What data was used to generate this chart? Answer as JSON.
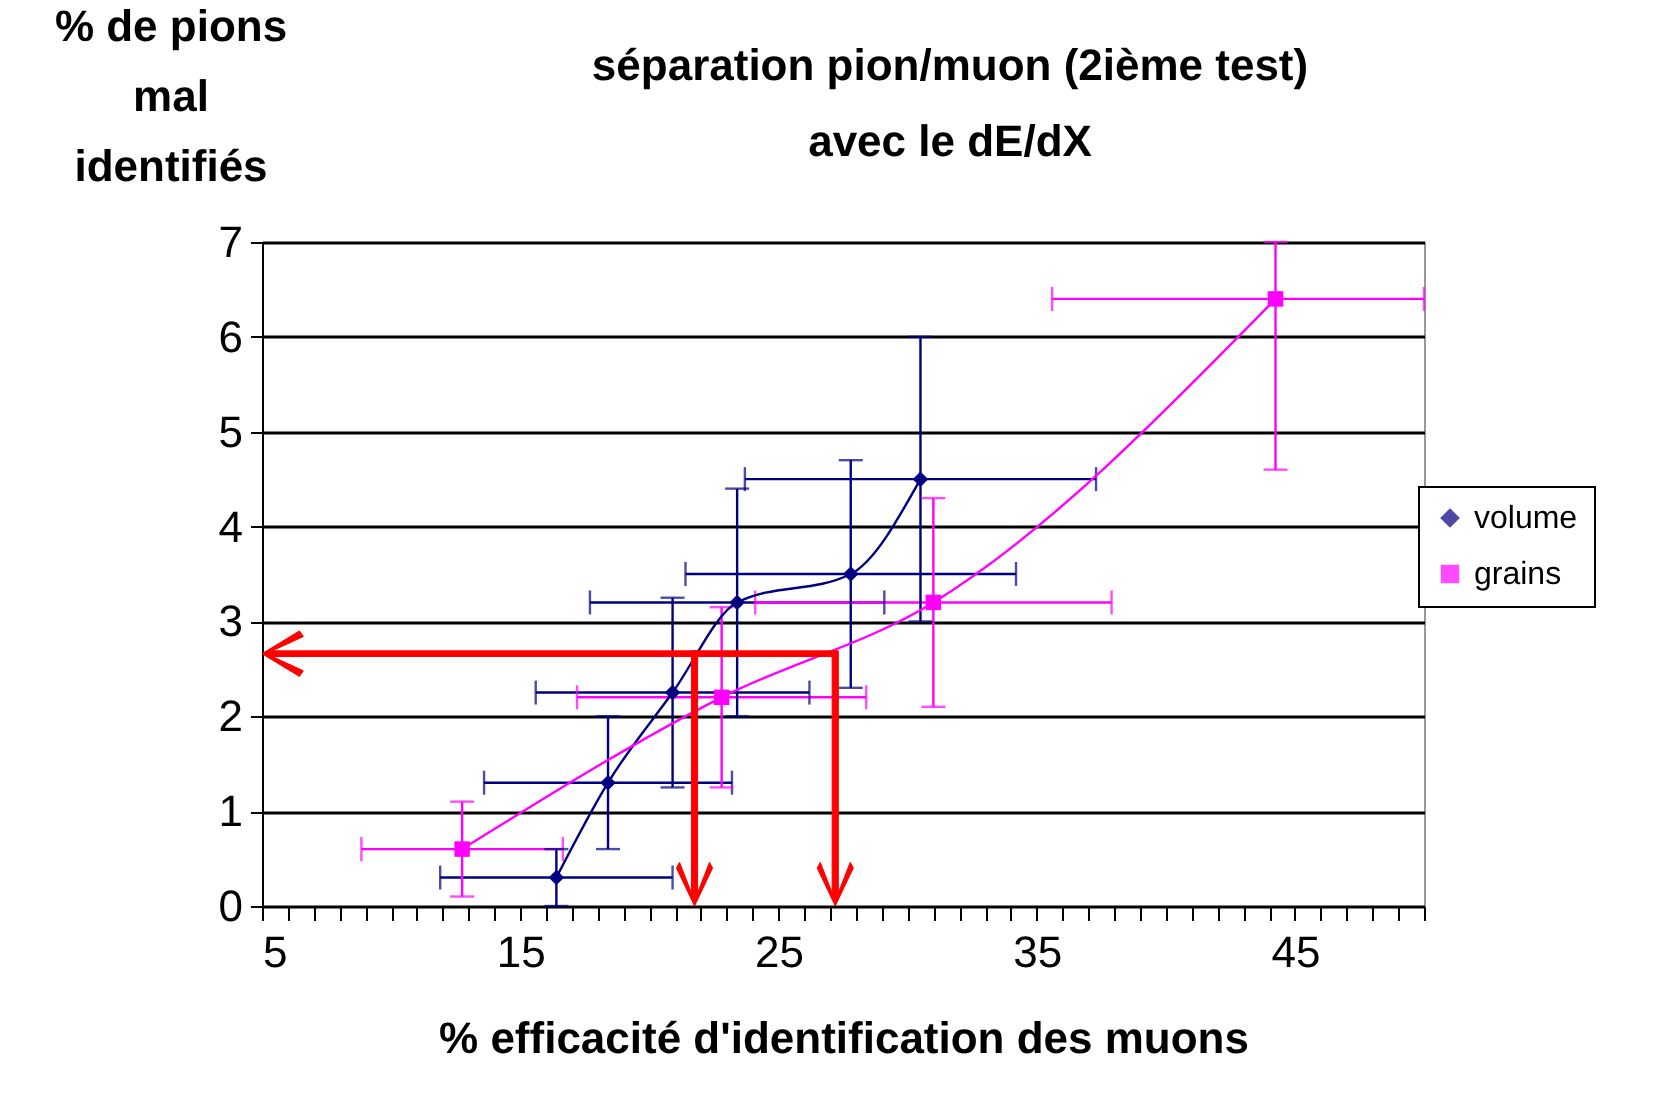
{
  "chart_data": {
    "type": "line",
    "title": "séparation pion/muon (2ième test)\navec le dE/dX",
    "xlabel": "% efficacité d'identification des muons",
    "ylabel": "% de pions mal identifiés",
    "xlim": [
      5,
      50
    ],
    "ylim": [
      0,
      7
    ],
    "xticks": [
      5,
      {
        "value": 6,
        "label": null
      },
      {
        "value": 7,
        "label": null
      },
      {
        "value": 8,
        "label": null
      },
      {
        "value": 9,
        "label": null
      },
      {
        "value": 10,
        "label": null
      },
      {
        "value": 11,
        "label": null
      },
      {
        "value": 12,
        "label": null
      },
      {
        "value": 13,
        "label": null
      },
      {
        "value": 14,
        "label": null
      },
      15,
      {
        "value": 16,
        "label": null
      },
      {
        "value": 17,
        "label": null
      },
      {
        "value": 18,
        "label": null
      },
      {
        "value": 19,
        "label": null
      },
      {
        "value": 20,
        "label": null
      },
      {
        "value": 21,
        "label": null
      },
      {
        "value": 22,
        "label": null
      },
      {
        "value": 23,
        "label": null
      },
      {
        "value": 24,
        "label": null
      },
      25,
      {
        "value": 26,
        "label": null
      },
      {
        "value": 27,
        "label": null
      },
      {
        "value": 28,
        "label": null
      },
      {
        "value": 29,
        "label": null
      },
      {
        "value": 30,
        "label": null
      },
      {
        "value": 31,
        "label": null
      },
      {
        "value": 32,
        "label": null
      },
      {
        "value": 33,
        "label": null
      },
      {
        "value": 34,
        "label": null
      },
      35,
      {
        "value": 36,
        "label": null
      },
      {
        "value": 37,
        "label": null
      },
      {
        "value": 38,
        "label": null
      },
      {
        "value": 39,
        "label": null
      },
      {
        "value": 40,
        "label": null
      },
      {
        "value": 41,
        "label": null
      },
      {
        "value": 42,
        "label": null
      },
      {
        "value": 43,
        "label": null
      },
      {
        "value": 44,
        "label": null
      },
      45,
      {
        "value": 46,
        "label": null
      },
      {
        "value": 47,
        "label": null
      },
      {
        "value": 48,
        "label": null
      },
      {
        "value": 49,
        "label": null
      },
      {
        "value": 50,
        "label": null
      }
    ],
    "yticks": [
      0,
      1,
      2,
      3,
      4,
      5,
      6,
      7
    ],
    "grid": "y",
    "legend": "right",
    "series": [
      {
        "name": "volume",
        "color": "#000080",
        "marker": "diamond",
        "x": [
          16.4,
          18.4,
          20.9,
          23.4,
          27.8,
          30.5
        ],
        "values": [
          0.3,
          1.3,
          2.25,
          3.2,
          3.5,
          4.5
        ],
        "xerrors": [
          4.5,
          4.8,
          5.3,
          5.7,
          6.4,
          6.8
        ],
        "errors": [
          0.3,
          0.7,
          1.0,
          1.2,
          1.2,
          1.5
        ]
      },
      {
        "name": "grains",
        "color": "#ff00ff",
        "marker": "square",
        "x": [
          12.75,
          22.8,
          31.0,
          44.25
        ],
        "values": [
          0.6,
          2.2,
          3.2,
          6.4
        ],
        "xerrors": [
          3.9,
          5.6,
          6.9,
          [
            35.6,
            50
          ]
        ],
        "errors": [
          0.5,
          0.95,
          1.1,
          [
            4.6,
            7
          ]
        ]
      }
    ]
  }
}
